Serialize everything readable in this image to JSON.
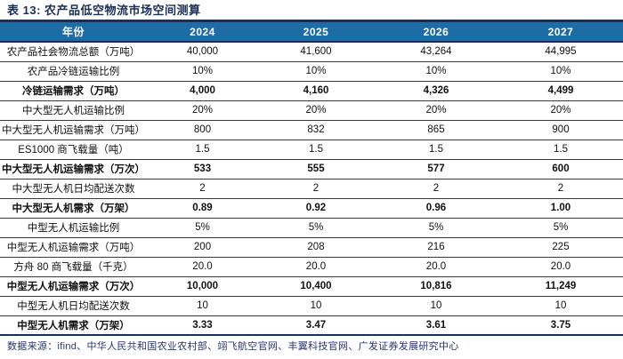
{
  "title": "表 13: 农产品低空物流市场空间测算",
  "colors": {
    "header_bg": "#1E6CA6",
    "header_text": "#FFFFFF",
    "accent_line": "#1A2F55",
    "row_line": "#3A3A3A",
    "source_text": "#27356F"
  },
  "table": {
    "columns": [
      "年份",
      "2024",
      "2025",
      "2026",
      "2027"
    ],
    "rows": [
      {
        "label": "农产品社会物流总额（万吨）",
        "values": [
          "40,000",
          "41,600",
          "43,264",
          "44,995"
        ],
        "bold": false
      },
      {
        "label": "农产品冷链运输比例",
        "values": [
          "10%",
          "10%",
          "10%",
          "10%"
        ],
        "bold": false
      },
      {
        "label": "冷链运输需求（万吨）",
        "values": [
          "4,000",
          "4,160",
          "4,326",
          "4,499"
        ],
        "bold": true
      },
      {
        "label": "中大型无人机运输比例",
        "values": [
          "20%",
          "20%",
          "20%",
          "20%"
        ],
        "bold": false
      },
      {
        "label": "中大型无人机运输需求（万吨）",
        "values": [
          "800",
          "832",
          "865",
          "900"
        ],
        "bold": false
      },
      {
        "label": "ES1000 商飞载量（吨）",
        "values": [
          "1.5",
          "1.5",
          "1.5",
          "1.5"
        ],
        "bold": false
      },
      {
        "label": "中大型无人机运输需求（万次）",
        "values": [
          "533",
          "555",
          "577",
          "600"
        ],
        "bold": true
      },
      {
        "label": "中大型无人机日均配送次数",
        "values": [
          "2",
          "2",
          "2",
          "2"
        ],
        "bold": false
      },
      {
        "label": "中大型无人机需求（万架）",
        "values": [
          "0.89",
          "0.92",
          "0.96",
          "1.00"
        ],
        "bold": true
      },
      {
        "label": "中型无人机运输比例",
        "values": [
          "5%",
          "5%",
          "5%",
          "5%"
        ],
        "bold": false
      },
      {
        "label": "中型无人机运输需求（万吨）",
        "values": [
          "200",
          "208",
          "216",
          "225"
        ],
        "bold": false
      },
      {
        "label": "方舟 80 商飞载量（千克）",
        "values": [
          "20.0",
          "20.0",
          "20.0",
          "20.0"
        ],
        "bold": false
      },
      {
        "label": "中型无人机运输需求（万次）",
        "values": [
          "10,000",
          "10,400",
          "10,816",
          "11,249"
        ],
        "bold": true
      },
      {
        "label": "中型无人机日均配送次数",
        "values": [
          "10",
          "10",
          "10",
          "10"
        ],
        "bold": false
      },
      {
        "label": "中型无人机需求（万架）",
        "values": [
          "3.33",
          "3.47",
          "3.61",
          "3.75"
        ],
        "bold": true
      }
    ]
  },
  "source": "数据来源：ifind、中华人民共和国农业农村部、翊飞航空官网、丰翼科技官网、广发证券发展研究中心"
}
